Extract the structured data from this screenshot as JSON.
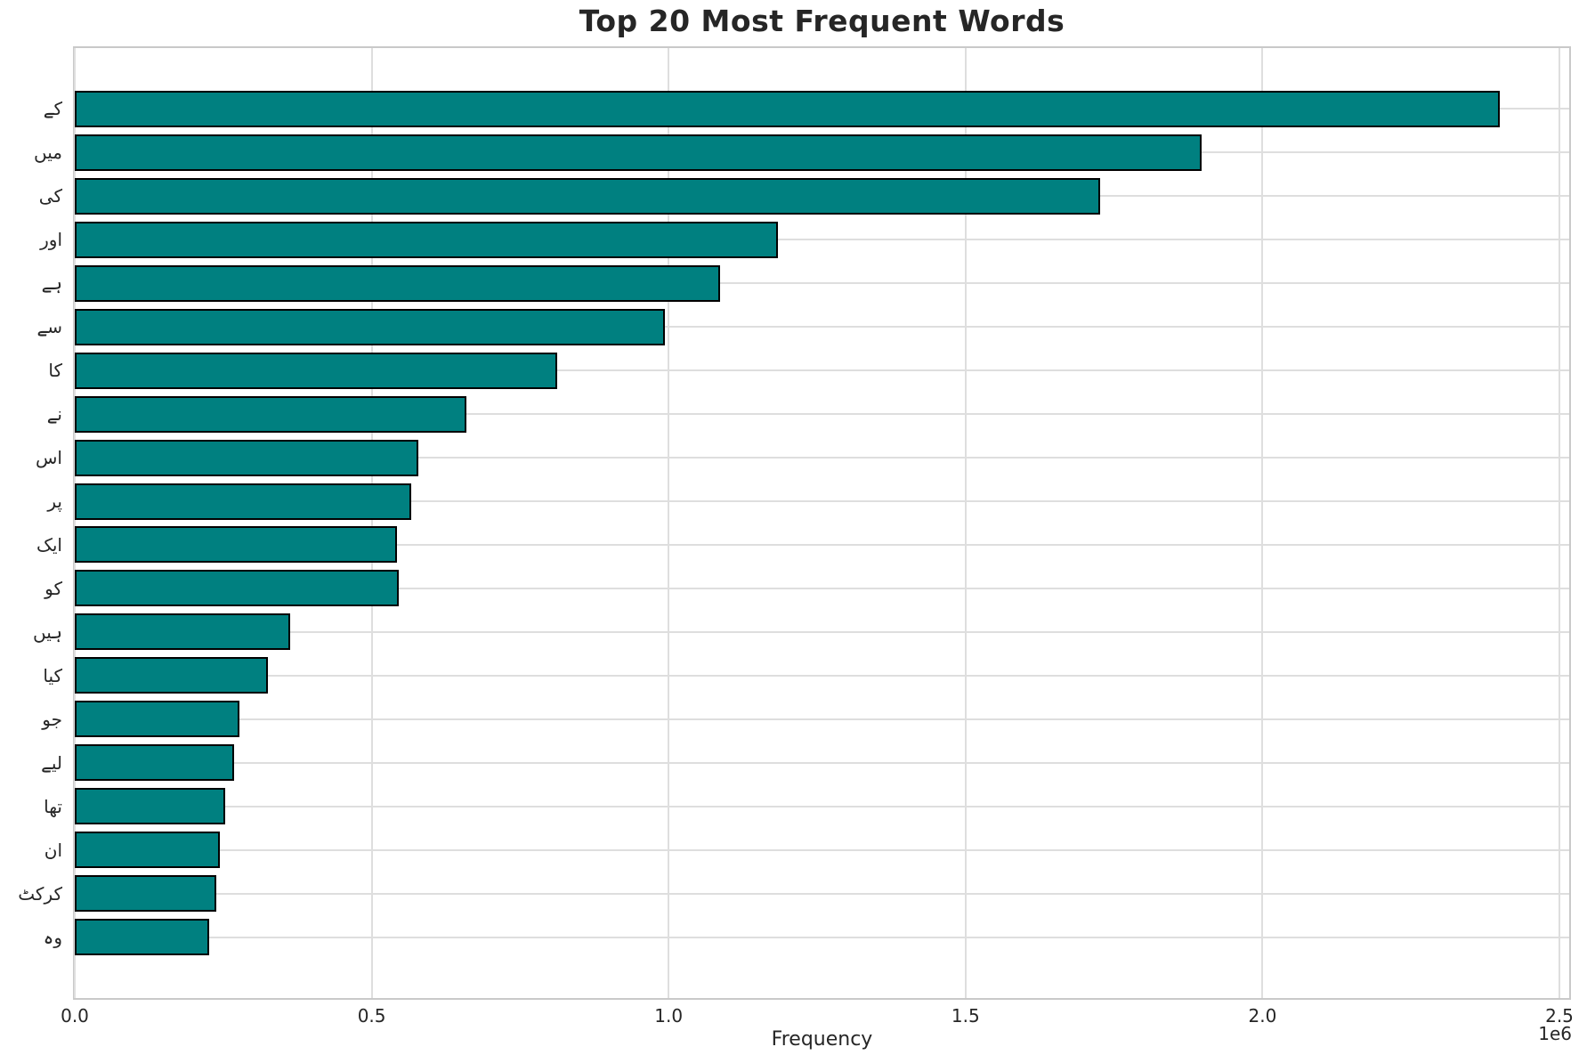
{
  "chart_data": {
    "type": "bar",
    "orientation": "horizontal",
    "title": "Top 20 Most Frequent Words",
    "xlabel": "Frequency",
    "ylabel": "",
    "x_offset_text": "1e6",
    "xlim": [
      0,
      2500000
    ],
    "xticks": [
      0,
      500000,
      1000000,
      1500000,
      2000000,
      2500000
    ],
    "xtick_labels": [
      "0.0",
      "0.5",
      "1.0",
      "1.5",
      "2.0",
      "2.5"
    ],
    "grid": true,
    "legend": false,
    "bar_color": "#008080",
    "bar_edge_color": "#000000",
    "grid_color": "#dedede",
    "title_color": "#262626",
    "tick_color": "#262626",
    "categories": [
      "کے",
      "میں",
      "کی",
      "اور",
      "ہے",
      "سے",
      "کا",
      "نے",
      "اس",
      "پر",
      "ایک",
      "کو",
      "ہیں",
      "کیا",
      "جو",
      "لیے",
      "تھا",
      "ان",
      "کرکٹ",
      "وہ"
    ],
    "values": [
      2400000,
      1897000,
      1727000,
      1184000,
      1086000,
      994000,
      813000,
      659000,
      579000,
      567000,
      543000,
      545000,
      362000,
      325000,
      278000,
      269000,
      253000,
      245000,
      238000,
      227000
    ]
  }
}
